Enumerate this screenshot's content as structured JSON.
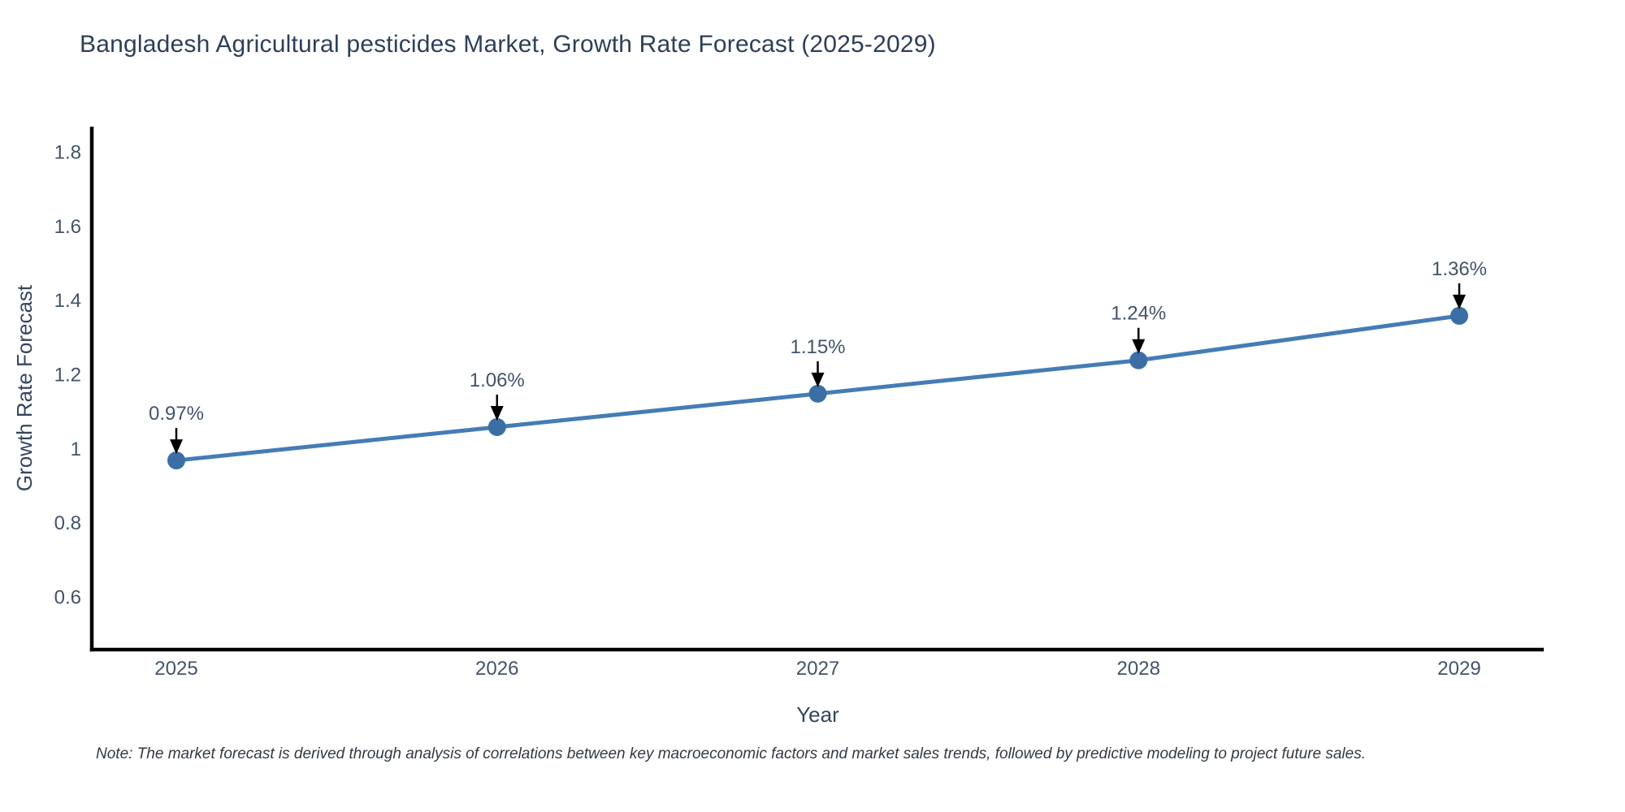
{
  "note": "Note: The market forecast is derived through analysis of correlations between key macroeconomic factors and market sales trends, followed by predictive modeling to project future sales.",
  "chart_data": {
    "type": "line",
    "title": "Bangladesh Agricultural pesticides Market, Growth Rate Forecast (2025-2029)",
    "xlabel": "Year",
    "ylabel": "Growth Rate Forecast",
    "categories": [
      "2025",
      "2026",
      "2027",
      "2028",
      "2029"
    ],
    "values": [
      0.97,
      1.06,
      1.15,
      1.24,
      1.36
    ],
    "point_labels": [
      "0.97%",
      "1.06%",
      "1.15%",
      "1.24%",
      "1.36%"
    ],
    "yticks": [
      0.6,
      0.8,
      1,
      1.2,
      1.4,
      1.6,
      1.8
    ],
    "ytick_labels": [
      "0.6",
      "0.8",
      "1",
      "1.2",
      "1.4",
      "1.6",
      "1.8"
    ],
    "ylim": [
      0.46,
      1.87
    ],
    "grid": false,
    "legend": "none",
    "line_color": "#457cb5",
    "marker_color": "#3a6ea5",
    "axis_color": "#000000",
    "annotation_color": "#000000",
    "tick_label_color": "#42536b",
    "title_color": "#2d3f5a"
  }
}
